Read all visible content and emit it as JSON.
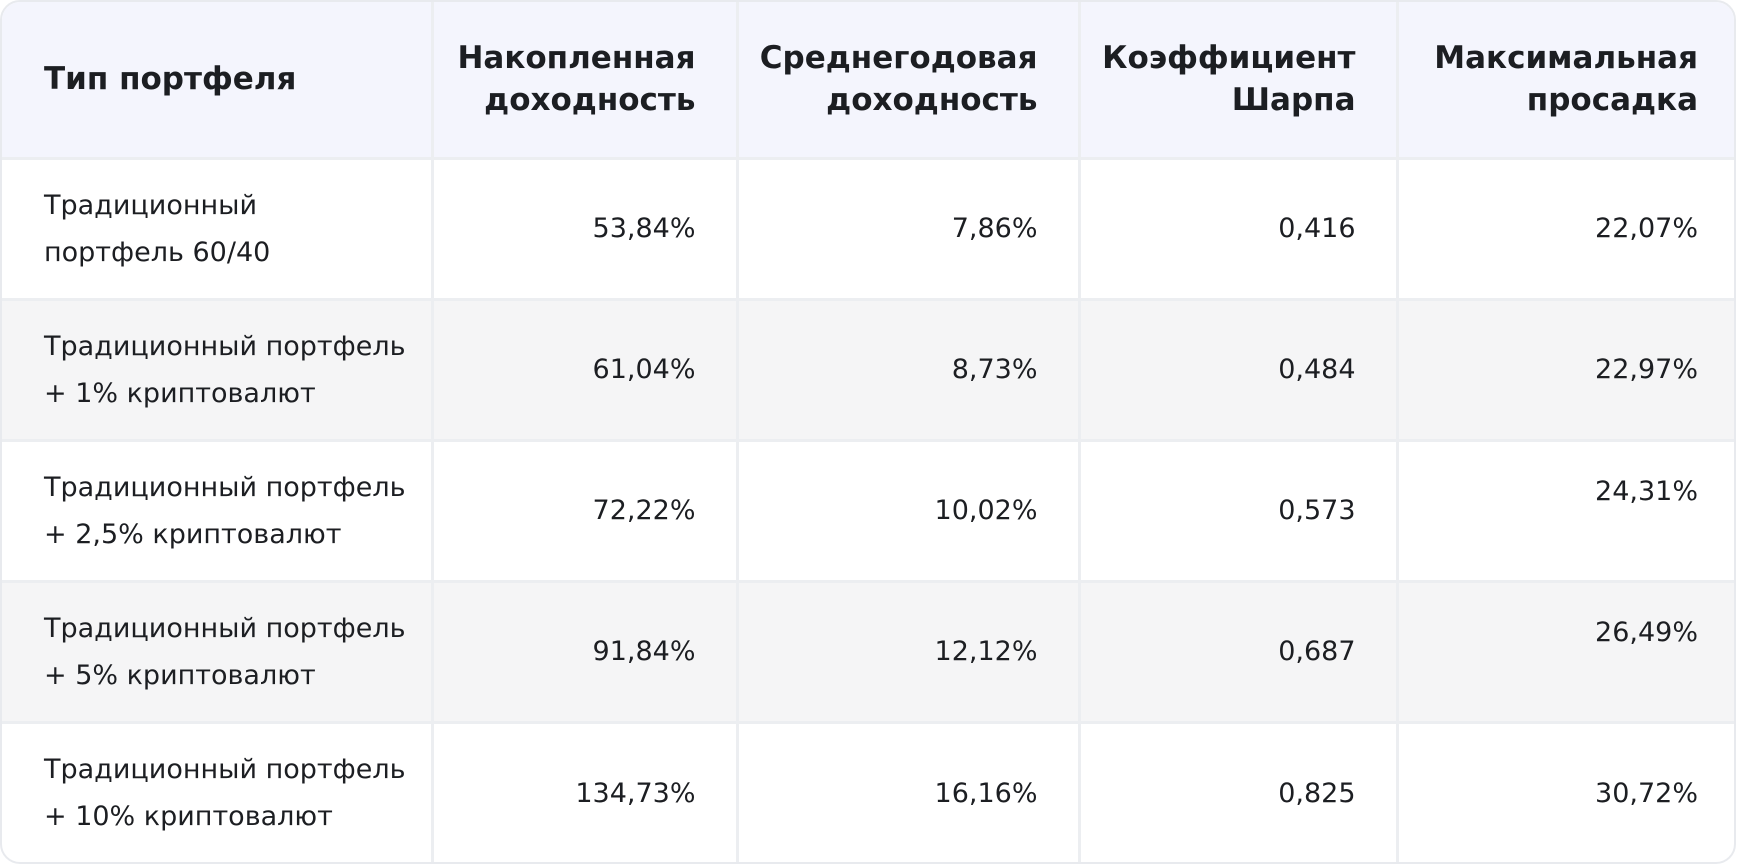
{
  "table": {
    "headers": {
      "type": "Тип портфеля",
      "cumulative_line1": "Накопленная",
      "cumulative_line2": "доходность",
      "annual_line1": "Среднегодовая",
      "annual_line2": "доходность",
      "sharpe_line1": "Коэффициент",
      "sharpe_line2": "Шарпа",
      "drawdown_line1": "Максимальная",
      "drawdown_line2": "просадка"
    },
    "rows": [
      {
        "type_line1": "Традиционный",
        "type_line2": "портфель 60/40",
        "cumulative": "53,84%",
        "annual": "7,86%",
        "sharpe": "0,416",
        "drawdown": "22,07%"
      },
      {
        "type_line1": "Традиционный портфель",
        "type_line2": "+ 1% криптовалют",
        "cumulative": "61,04%",
        "annual": "8,73%",
        "sharpe": "0,484",
        "drawdown": "22,97%"
      },
      {
        "type_line1": "Традиционный портфель",
        "type_line2": "+ 2,5% криптовалют",
        "cumulative": "72,22%",
        "annual": "10,02%",
        "sharpe": "0,573",
        "drawdown": "24,31%"
      },
      {
        "type_line1": "Традиционный портфель",
        "type_line2": "+ 5% криптовалют",
        "cumulative": "91,84%",
        "annual": "12,12%",
        "sharpe": "0,687",
        "drawdown": "26,49%"
      },
      {
        "type_line1": "Традиционный портфель",
        "type_line2": "+ 10% криптовалют",
        "cumulative": "134,73%",
        "annual": "16,16%",
        "sharpe": "0,825",
        "drawdown": "30,72%"
      }
    ]
  }
}
